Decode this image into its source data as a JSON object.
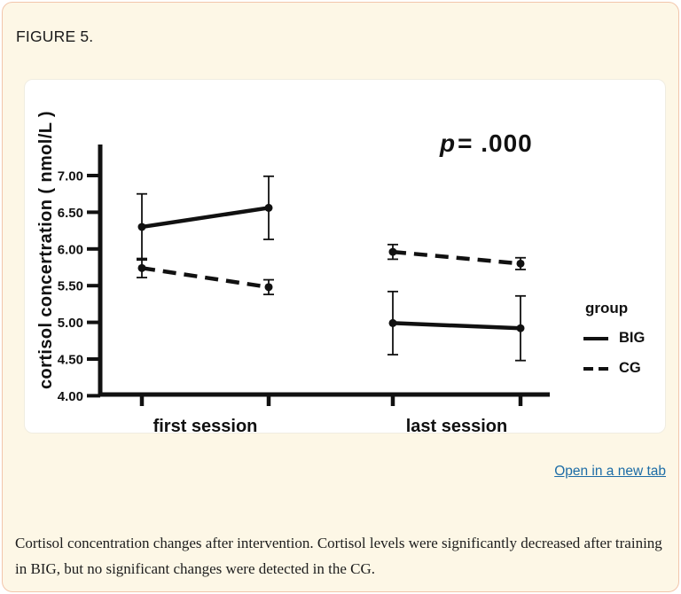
{
  "page": {
    "figure_label": "FIGURE 5.",
    "open_link": "Open in a new tab",
    "caption": "Cortisol concentration changes after intervention. Cortisol levels were significantly decreased after training in BIG, but no significant changes were detected in the CG.",
    "colors": {
      "card_bg": "#fdf7e6",
      "card_border": "#f2c6ac",
      "link": "#1c6ca6",
      "ink": "#111111"
    }
  },
  "chart_data": {
    "type": "line",
    "title": "",
    "xlabel": "",
    "ylabel": "cortisol concertration ( nmol/L )",
    "annotation": {
      "symbol": "p",
      "value": "= .000"
    },
    "ylim": [
      4.0,
      7.4
    ],
    "ytick_values": [
      7.0,
      6.5,
      6.0,
      5.5,
      5.0,
      4.5,
      4.0
    ],
    "yticks": [
      "7.00",
      "6.50",
      "6.00",
      "5.50",
      "5.00",
      "4.50",
      "4.00"
    ],
    "x_groups": [
      {
        "label": "first session",
        "ticks": [
          0,
          1
        ]
      },
      {
        "label": "last session",
        "ticks": [
          2,
          3
        ]
      }
    ],
    "grid": false,
    "legend": {
      "title": "group",
      "position": "right",
      "entries": [
        {
          "label": "BIG",
          "style": "solid"
        },
        {
          "label": "CG",
          "style": "dashed"
        }
      ]
    },
    "series": [
      {
        "name": "BIG",
        "style": "solid",
        "values": [
          6.3,
          6.56,
          4.99,
          4.92
        ],
        "errors": [
          0.45,
          0.43,
          0.43,
          0.44
        ],
        "segments": [
          [
            0,
            1
          ],
          [
            2,
            3
          ]
        ]
      },
      {
        "name": "CG",
        "style": "dashed",
        "values": [
          5.74,
          5.48,
          5.96,
          5.8
        ],
        "errors": [
          0.13,
          0.1,
          0.1,
          0.08
        ],
        "segments": [
          [
            0,
            1
          ],
          [
            2,
            3
          ]
        ]
      }
    ]
  }
}
